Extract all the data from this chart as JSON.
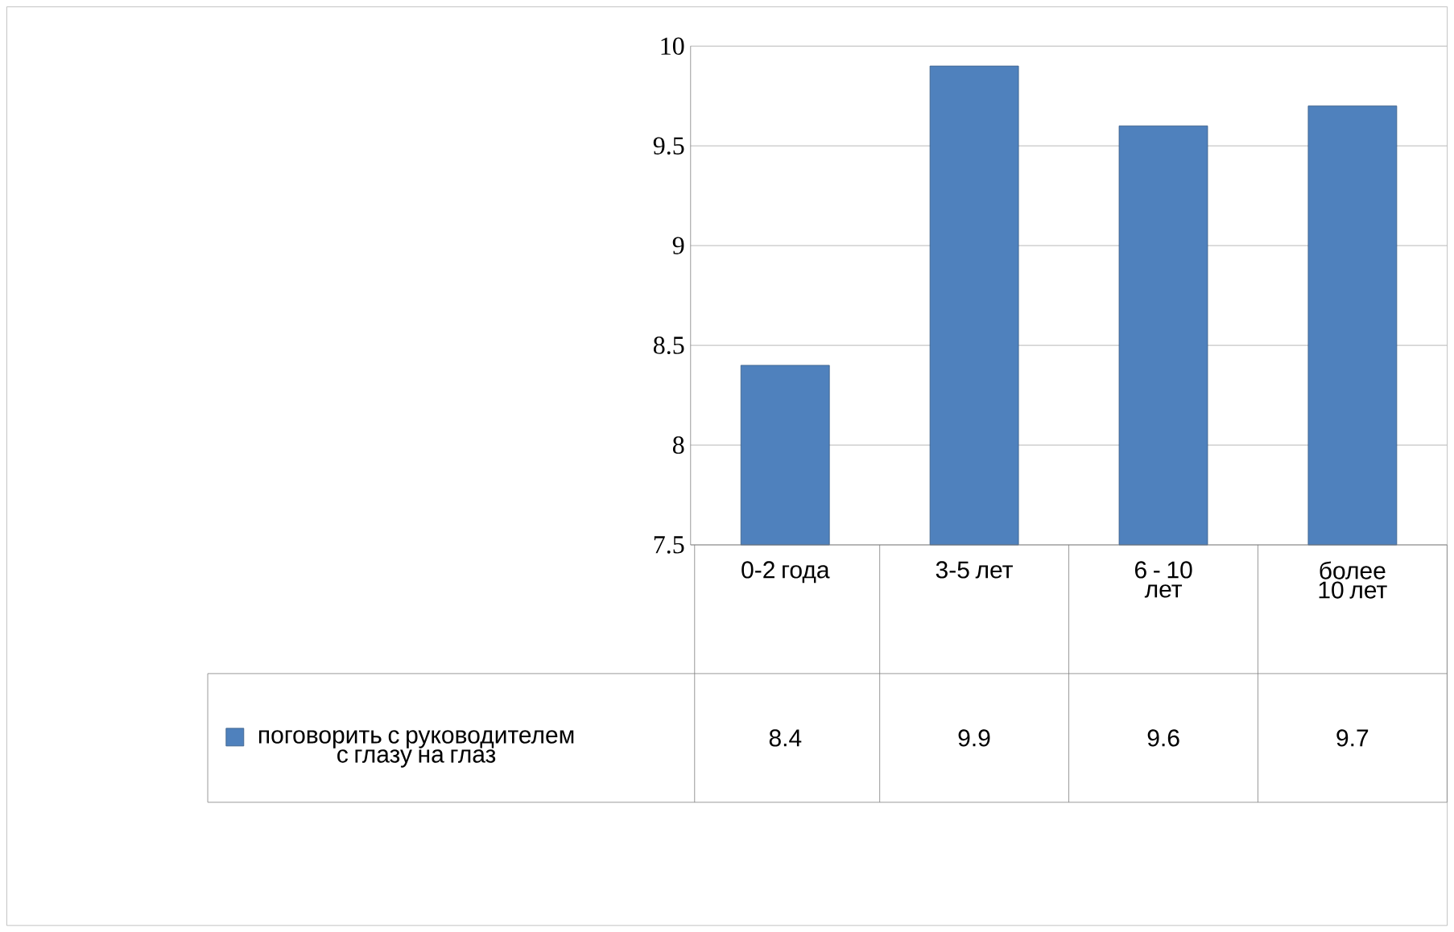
{
  "chart_data": {
    "type": "bar",
    "categories": [
      "0-2 года",
      "3-5 лет",
      "6 - 10 лет",
      "более 10 лет"
    ],
    "series": [
      {
        "name": "поговорить с руководителем с глазу на глаз",
        "color": "#4f81bd",
        "values": [
          8.4,
          9.9,
          9.6,
          9.7
        ]
      }
    ],
    "ylim": [
      7.5,
      10
    ],
    "yticks": [
      7.5,
      8,
      8.5,
      9,
      9.5,
      10
    ],
    "grid": "y",
    "legend": "bottom",
    "data_labels": true
  }
}
